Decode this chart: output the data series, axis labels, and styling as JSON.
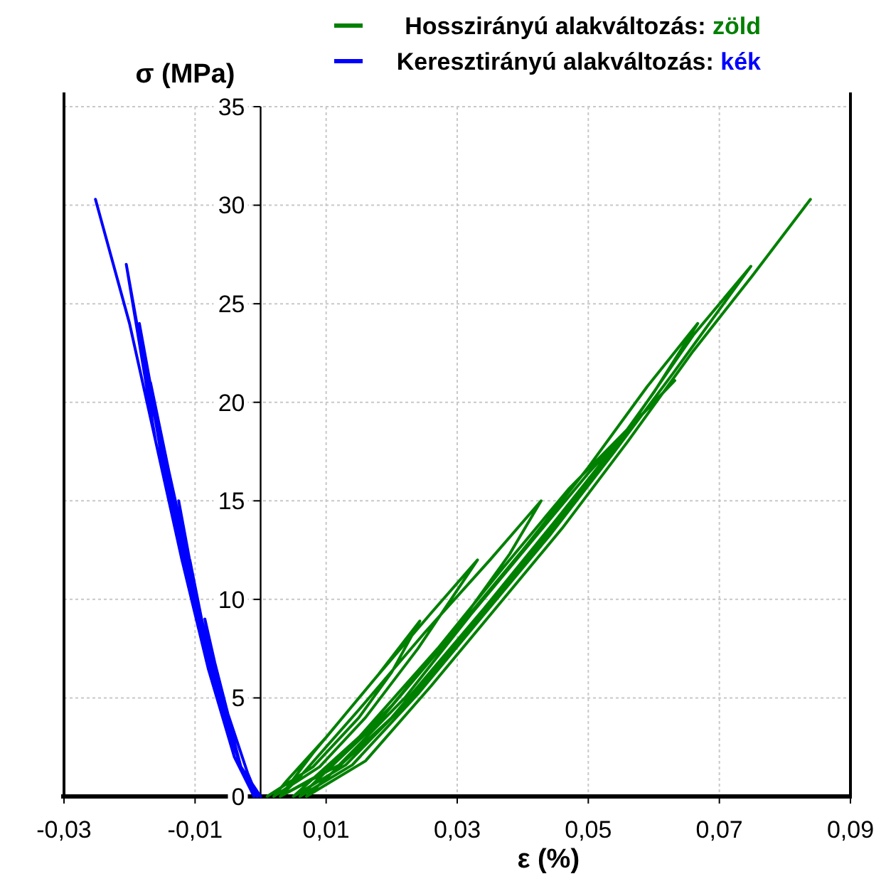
{
  "chart_data": {
    "type": "line",
    "xlabel": "ε (%)",
    "ylabel": "σ (MPa)",
    "xlim": [
      -0.03,
      0.09
    ],
    "ylim": [
      0,
      35
    ],
    "xticks": [
      {
        "value": -0.03,
        "label": "-0,03"
      },
      {
        "value": -0.01,
        "label": "-0,01"
      },
      {
        "value": 0.01,
        "label": "0,01"
      },
      {
        "value": 0.03,
        "label": "0,03"
      },
      {
        "value": 0.05,
        "label": "0,05"
      },
      {
        "value": 0.07,
        "label": "0,07"
      },
      {
        "value": 0.09,
        "label": "0,09"
      }
    ],
    "yticks": [
      0,
      5,
      10,
      15,
      20,
      25,
      30,
      35
    ],
    "grid": true,
    "legend": "top",
    "marker": "none",
    "line_style": "solid",
    "annotations": [
      "zöld",
      "kék"
    ],
    "series": [
      {
        "name": "Hosszirányú alakváltozás:",
        "color": "#008000",
        "x": [
          0.001,
          0.008,
          0.015,
          0.02,
          0.0243,
          0.018,
          0.01,
          0.004,
          0.002,
          0.009,
          0.016,
          0.024,
          0.0331,
          0.026,
          0.017,
          0.008,
          0.003,
          0.01,
          0.02,
          0.03,
          0.038,
          0.0428,
          0.035,
          0.025,
          0.015,
          0.006,
          0.003,
          0.012,
          0.022,
          0.032,
          0.042,
          0.05,
          0.058,
          0.0632,
          0.055,
          0.047,
          0.037,
          0.027,
          0.015,
          0.005,
          0.013,
          0.023,
          0.033,
          0.043,
          0.052,
          0.06,
          0.0667,
          0.059,
          0.05,
          0.04,
          0.03,
          0.018,
          0.006,
          0.014,
          0.024,
          0.034,
          0.044,
          0.054,
          0.063,
          0.0748,
          0.066,
          0.056,
          0.045,
          0.034,
          0.02,
          0.007,
          0.016,
          0.026,
          0.036,
          0.046,
          0.056,
          0.066,
          0.075,
          0.0839
        ],
        "values": [
          0,
          1.5,
          4,
          6.3,
          8.9,
          6.2,
          3,
          0.8,
          0,
          1.5,
          4,
          7.5,
          12,
          9.3,
          5.8,
          2.2,
          0,
          1.3,
          4.6,
          8.6,
          12.3,
          15,
          12,
          8.3,
          4.4,
          1,
          0,
          1.6,
          5,
          9.2,
          13.2,
          16.4,
          19.3,
          21.1,
          18.3,
          15.6,
          11.6,
          7.5,
          3,
          0,
          1.6,
          5,
          9,
          13,
          16.8,
          20.5,
          24,
          20.8,
          16.7,
          12.5,
          8.5,
          3.8,
          0,
          1.6,
          5.2,
          9.2,
          13.2,
          17.5,
          21.5,
          26.9,
          23.4,
          18.6,
          14,
          9.5,
          4,
          0,
          1.8,
          5.6,
          9.6,
          13.6,
          18,
          22.6,
          26.4,
          30.3
        ]
      },
      {
        "name": "Keresztirányú alakváltozás:",
        "color": "#0000ff",
        "x": [
          0,
          -0.003,
          -0.005,
          -0.007,
          -0.0085,
          -0.007,
          -0.005,
          -0.002,
          -0.0005,
          -0.003,
          -0.006,
          -0.009,
          -0.0108,
          -0.009,
          -0.006,
          -0.003,
          -0.001,
          -0.004,
          -0.007,
          -0.01,
          -0.0125,
          -0.01,
          -0.007,
          -0.003,
          -0.001,
          -0.004,
          -0.008,
          -0.011,
          -0.014,
          -0.0168,
          -0.014,
          -0.011,
          -0.007,
          -0.003,
          -0.0005,
          -0.004,
          -0.008,
          -0.012,
          -0.015,
          -0.0185,
          -0.0155,
          -0.012,
          -0.008,
          -0.003,
          -0.001,
          -0.004,
          -0.008,
          -0.012,
          -0.016,
          -0.0205,
          -0.017,
          -0.013,
          -0.009,
          -0.004,
          -0.001,
          -0.004,
          -0.008,
          -0.012,
          -0.016,
          -0.02,
          -0.0252
        ],
        "values": [
          0,
          1.5,
          4,
          6.5,
          9,
          6.8,
          4.2,
          1.2,
          0,
          1.5,
          4.5,
          8.5,
          12,
          9,
          5,
          1.5,
          0,
          2,
          5.5,
          10,
          15,
          10.5,
          6,
          1.5,
          0,
          2,
          6.5,
          11,
          15.5,
          21,
          16.5,
          12,
          6,
          1.5,
          0,
          2,
          6.5,
          12,
          17,
          24,
          18.5,
          13,
          7,
          1.5,
          0,
          2,
          6.5,
          12,
          18,
          27,
          20.5,
          14.5,
          8,
          2,
          0,
          2,
          6.5,
          12,
          18,
          24,
          30.3
        ]
      }
    ]
  }
}
